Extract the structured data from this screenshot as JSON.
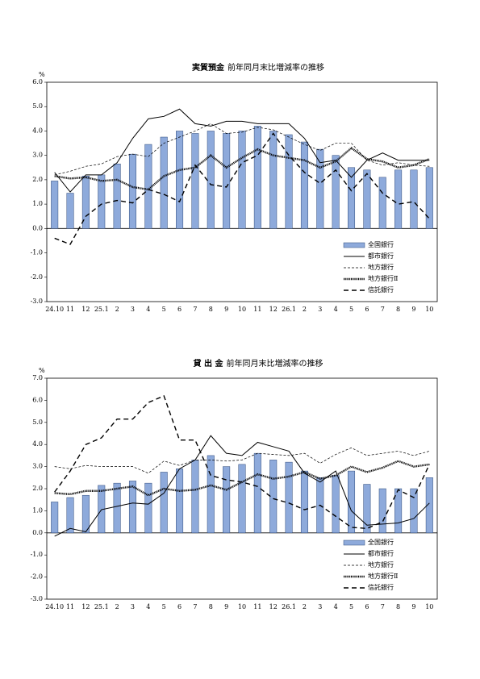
{
  "chart_data": [
    {
      "type": "combo",
      "title": "実質預金",
      "subtitle": "前年同月末比増減率の推移",
      "y_unit": "%",
      "categories": [
        "24.10",
        "11",
        "12",
        "25.1",
        "2",
        "3",
        "4",
        "5",
        "6",
        "7",
        "8",
        "9",
        "10",
        "11",
        "12",
        "26.1",
        "2",
        "3",
        "4",
        "5",
        "6",
        "7",
        "8",
        "9",
        "10"
      ],
      "ylim": [
        -3,
        6
      ],
      "yticks": [
        {
          "value": -3,
          "label": "-3.0"
        },
        {
          "value": -2,
          "label": "-2.0"
        },
        {
          "value": -1,
          "label": "-1.0"
        },
        {
          "value": 0,
          "label": "0.0"
        },
        {
          "value": 1,
          "label": "1.0"
        },
        {
          "value": 2,
          "label": "2.0"
        },
        {
          "value": 3,
          "label": "3.0"
        },
        {
          "value": 4,
          "label": "4.0"
        },
        {
          "value": 5,
          "label": "5.0"
        },
        {
          "value": 6,
          "label": "6.0"
        }
      ],
      "legend": "lower right",
      "series": [
        {
          "name": "全国銀行",
          "type": "bar",
          "color": "#8eaadb",
          "values": [
            1.95,
            1.45,
            2.15,
            2.2,
            2.65,
            3.05,
            3.45,
            3.75,
            4.0,
            3.9,
            4.0,
            3.9,
            4.0,
            4.2,
            4.0,
            3.85,
            3.55,
            3.25,
            3.0,
            2.5,
            2.4,
            2.1,
            2.4,
            2.4,
            2.5
          ]
        },
        {
          "name": "都市銀行",
          "type": "line",
          "style": "solid",
          "color": "#000000",
          "values": [
            2.3,
            1.5,
            2.2,
            2.2,
            2.7,
            3.7,
            4.5,
            4.6,
            4.9,
            4.3,
            4.2,
            4.4,
            4.4,
            4.3,
            4.3,
            4.3,
            3.7,
            2.7,
            2.8,
            2.1,
            2.8,
            3.1,
            2.8,
            2.8,
            2.8
          ]
        },
        {
          "name": "地方銀行",
          "type": "line",
          "style": "dashed",
          "color": "#000000",
          "values": [
            2.2,
            2.35,
            2.55,
            2.65,
            2.95,
            3.05,
            2.95,
            3.5,
            3.75,
            4.0,
            4.3,
            3.9,
            3.95,
            4.15,
            4.05,
            3.75,
            3.45,
            3.2,
            3.5,
            3.5,
            2.8,
            2.6,
            2.7,
            2.6,
            2.55
          ]
        },
        {
          "name": "地方銀行Ⅱ",
          "type": "line",
          "style": "textured",
          "color": "#000000",
          "values": [
            2.15,
            2.05,
            2.1,
            1.95,
            2.0,
            1.7,
            1.6,
            2.15,
            2.4,
            2.5,
            3.0,
            2.5,
            2.9,
            3.25,
            3.0,
            2.9,
            2.8,
            2.5,
            2.75,
            3.3,
            2.85,
            2.75,
            2.5,
            2.6,
            2.85
          ]
        },
        {
          "name": "信託銀行",
          "type": "line",
          "style": "bold-dashed",
          "color": "#000000",
          "values": [
            -0.4,
            -0.65,
            0.5,
            1.0,
            1.15,
            1.05,
            1.6,
            1.4,
            1.1,
            2.6,
            1.8,
            1.7,
            2.7,
            3.0,
            3.9,
            3.0,
            2.3,
            1.85,
            2.4,
            1.55,
            2.25,
            1.45,
            1.0,
            1.1,
            0.4
          ]
        }
      ]
    },
    {
      "type": "combo",
      "title": "貸 出 金",
      "subtitle": "前年同月末比増減率の推移",
      "y_unit": "%",
      "categories": [
        "24.10",
        "11",
        "12",
        "25.1",
        "2",
        "3",
        "4",
        "5",
        "6",
        "7",
        "8",
        "9",
        "10",
        "11",
        "12",
        "26.1",
        "2",
        "3",
        "4",
        "5",
        "6",
        "7",
        "8",
        "9",
        "10"
      ],
      "ylim": [
        -3,
        7
      ],
      "yticks": [
        {
          "value": -3,
          "label": "-3.0"
        },
        {
          "value": -2,
          "label": "-2.0"
        },
        {
          "value": -1,
          "label": "-1.0"
        },
        {
          "value": 0,
          "label": "0.0"
        },
        {
          "value": 1,
          "label": "1.0"
        },
        {
          "value": 2,
          "label": "2.0"
        },
        {
          "value": 3,
          "label": "3.0"
        },
        {
          "value": 4,
          "label": "4.0"
        },
        {
          "value": 5,
          "label": "5.0"
        },
        {
          "value": 6,
          "label": "6.0"
        },
        {
          "value": 7,
          "label": "7.0"
        }
      ],
      "legend": "lower right",
      "series": [
        {
          "name": "全国銀行",
          "type": "bar",
          "color": "#8eaadb",
          "values": [
            1.4,
            1.6,
            1.7,
            2.15,
            2.25,
            2.35,
            2.25,
            2.75,
            2.9,
            3.3,
            3.5,
            3.0,
            3.1,
            3.6,
            3.3,
            3.2,
            2.8,
            2.5,
            2.6,
            2.8,
            2.2,
            2.0,
            2.0,
            2.0,
            2.5
          ]
        },
        {
          "name": "都市銀行",
          "type": "line",
          "style": "solid",
          "color": "#000000",
          "values": [
            -0.15,
            0.2,
            0.05,
            1.05,
            1.2,
            1.35,
            1.3,
            1.8,
            2.9,
            3.3,
            4.4,
            3.6,
            3.5,
            4.1,
            3.9,
            3.7,
            2.7,
            2.3,
            2.8,
            1.0,
            0.35,
            0.4,
            0.45,
            0.65,
            1.35
          ]
        },
        {
          "name": "地方銀行",
          "type": "line",
          "style": "dashed",
          "color": "#000000",
          "values": [
            3.0,
            2.9,
            3.05,
            3.0,
            3.0,
            3.0,
            2.7,
            3.25,
            3.05,
            3.3,
            3.3,
            3.25,
            3.3,
            3.6,
            3.55,
            3.5,
            3.6,
            3.15,
            3.55,
            3.85,
            3.5,
            3.6,
            3.7,
            3.5,
            3.7
          ]
        },
        {
          "name": "地方銀行Ⅱ",
          "type": "line",
          "style": "textured",
          "color": "#000000",
          "values": [
            1.8,
            1.75,
            1.9,
            1.9,
            2.0,
            2.1,
            1.7,
            2.0,
            1.9,
            1.95,
            2.15,
            1.95,
            2.3,
            2.65,
            2.45,
            2.55,
            2.75,
            2.45,
            2.6,
            3.0,
            2.75,
            2.95,
            3.25,
            3.0,
            3.1
          ]
        },
        {
          "name": "信託銀行",
          "type": "line",
          "style": "bold-dashed",
          "color": "#000000",
          "values": [
            1.85,
            2.8,
            4.0,
            4.3,
            5.15,
            5.15,
            5.9,
            6.2,
            4.2,
            4.2,
            2.6,
            2.4,
            2.3,
            2.1,
            1.55,
            1.35,
            1.05,
            1.25,
            0.75,
            0.25,
            0.2,
            0.5,
            1.95,
            1.6,
            3.1
          ]
        }
      ]
    }
  ]
}
